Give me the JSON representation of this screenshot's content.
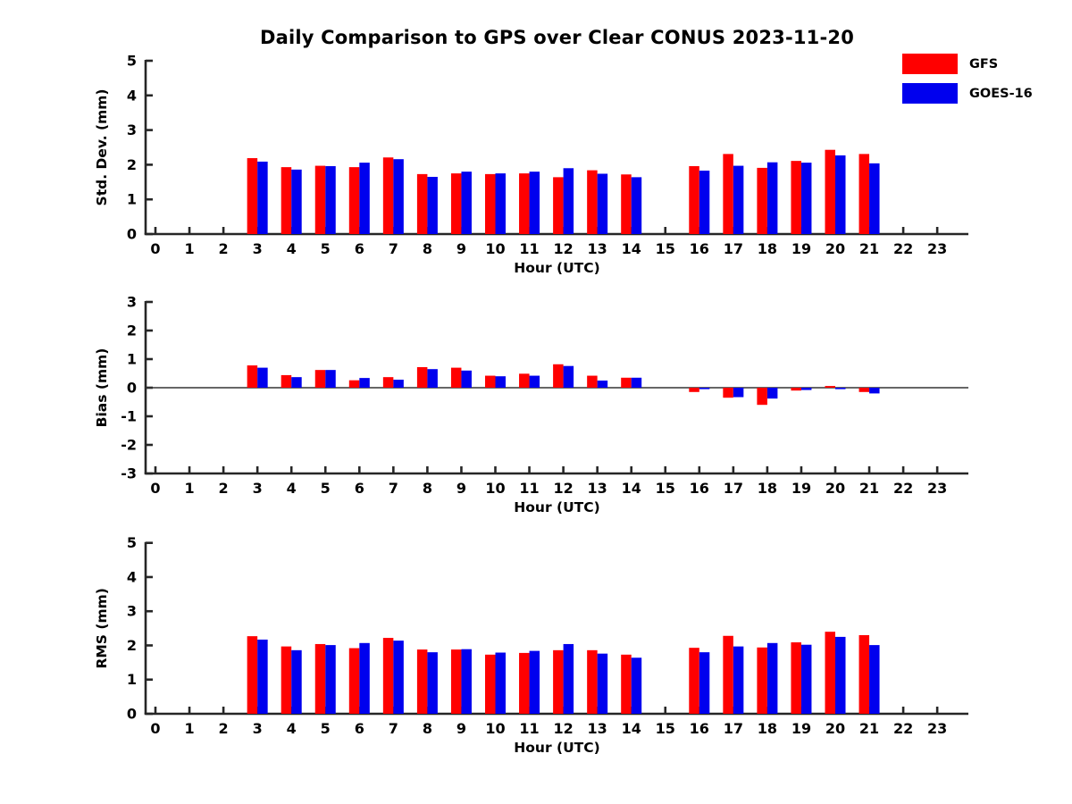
{
  "title": "Daily Comparison to GPS over Clear CONUS 2023-11-20",
  "legend": {
    "items": [
      {
        "label": "GFS",
        "color": "#ff0000"
      },
      {
        "label": "GOES-16",
        "color": "#0000ee"
      }
    ]
  },
  "colors": {
    "gfs": "#ff0000",
    "goes16": "#0000ee",
    "axis": "#262626",
    "text": "#000000",
    "background": "#ffffff"
  },
  "chart_data": [
    {
      "type": "bar",
      "panel": "stddev",
      "ylabel": "Std. Dev. (mm)",
      "xlabel": "Hour (UTC)",
      "ylim": [
        0,
        5
      ],
      "yticks": [
        0,
        1,
        2,
        3,
        4,
        5
      ],
      "grid": false,
      "legend_position": "top-right",
      "categories": [
        0,
        1,
        2,
        3,
        4,
        5,
        6,
        7,
        8,
        9,
        10,
        11,
        12,
        13,
        14,
        15,
        16,
        17,
        18,
        19,
        20,
        21,
        22,
        23
      ],
      "series": [
        {
          "name": "GFS",
          "values": [
            null,
            null,
            null,
            2.19,
            1.93,
            1.97,
            1.93,
            2.21,
            1.73,
            1.75,
            1.73,
            1.75,
            1.64,
            1.84,
            1.72,
            null,
            1.96,
            2.31,
            1.91,
            2.11,
            2.43,
            2.31,
            null,
            null
          ]
        },
        {
          "name": "GOES-16",
          "values": [
            null,
            null,
            null,
            2.09,
            1.86,
            1.96,
            2.06,
            2.16,
            1.65,
            1.8,
            1.75,
            1.8,
            1.9,
            1.74,
            1.64,
            null,
            1.83,
            1.97,
            2.07,
            2.06,
            2.27,
            2.04,
            null,
            null
          ]
        }
      ]
    },
    {
      "type": "bar",
      "panel": "bias",
      "ylabel": "Bias (mm)",
      "xlabel": "Hour (UTC)",
      "ylim": [
        -3,
        3
      ],
      "yticks": [
        -3,
        -2,
        -1,
        0,
        1,
        2,
        3
      ],
      "zero_line": true,
      "grid": false,
      "categories": [
        0,
        1,
        2,
        3,
        4,
        5,
        6,
        7,
        8,
        9,
        10,
        11,
        12,
        13,
        14,
        15,
        16,
        17,
        18,
        19,
        20,
        21,
        22,
        23
      ],
      "series": [
        {
          "name": "GFS",
          "values": [
            null,
            null,
            null,
            0.78,
            0.44,
            0.62,
            0.26,
            0.37,
            0.72,
            0.7,
            0.42,
            0.49,
            0.82,
            0.42,
            0.35,
            null,
            -0.15,
            -0.35,
            -0.6,
            -0.1,
            0.06,
            -0.15,
            null,
            null
          ]
        },
        {
          "name": "GOES-16",
          "values": [
            null,
            null,
            null,
            0.7,
            0.37,
            0.62,
            0.34,
            0.28,
            0.65,
            0.6,
            0.4,
            0.42,
            0.76,
            0.25,
            0.35,
            null,
            -0.05,
            -0.33,
            -0.38,
            -0.08,
            -0.05,
            -0.2,
            null,
            null
          ]
        }
      ]
    },
    {
      "type": "bar",
      "panel": "rms",
      "ylabel": "RMS (mm)",
      "xlabel": "Hour (UTC)",
      "ylim": [
        0,
        5
      ],
      "yticks": [
        0,
        1,
        2,
        3,
        4,
        5
      ],
      "grid": false,
      "categories": [
        0,
        1,
        2,
        3,
        4,
        5,
        6,
        7,
        8,
        9,
        10,
        11,
        12,
        13,
        14,
        15,
        16,
        17,
        18,
        19,
        20,
        21,
        22,
        23
      ],
      "series": [
        {
          "name": "GFS",
          "values": [
            null,
            null,
            null,
            2.27,
            1.97,
            2.04,
            1.92,
            2.22,
            1.88,
            1.88,
            1.73,
            1.78,
            1.86,
            1.86,
            1.73,
            null,
            1.93,
            2.28,
            1.94,
            2.09,
            2.4,
            2.3,
            null,
            null
          ]
        },
        {
          "name": "GOES-16",
          "values": [
            null,
            null,
            null,
            2.17,
            1.86,
            2.01,
            2.07,
            2.14,
            1.8,
            1.89,
            1.79,
            1.84,
            2.04,
            1.76,
            1.64,
            null,
            1.8,
            1.97,
            2.07,
            2.02,
            2.25,
            2.01,
            null,
            null
          ]
        }
      ]
    }
  ]
}
